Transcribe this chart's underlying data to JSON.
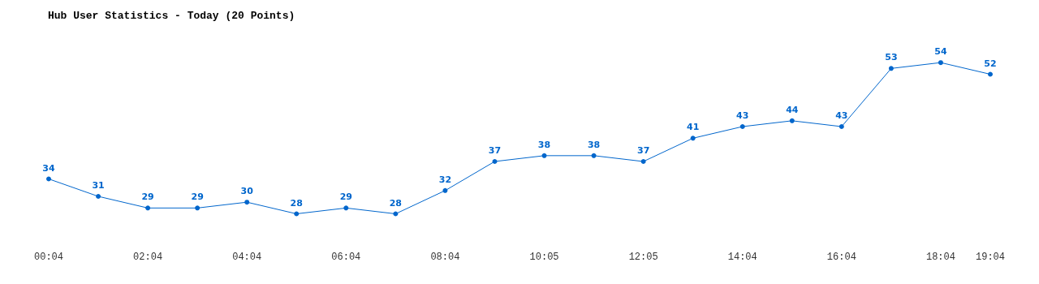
{
  "chart_data": {
    "type": "line",
    "title": "Hub User Statistics - Today (20 Points)",
    "categories": [
      "00:04",
      null,
      "02:04",
      null,
      "04:04",
      null,
      "06:04",
      null,
      "08:04",
      null,
      "10:05",
      null,
      "12:05",
      null,
      "14:04",
      null,
      "16:04",
      null,
      "18:04",
      "19:04"
    ],
    "series": [
      {
        "color": "#0066cc",
        "values": [
          34,
          31,
          29,
          29,
          30,
          28,
          29,
          28,
          32,
          37,
          38,
          38,
          37,
          41,
          43,
          44,
          43,
          53,
          54,
          52
        ]
      }
    ],
    "data_labels": true,
    "marker": "circle",
    "line_style": "solid"
  }
}
